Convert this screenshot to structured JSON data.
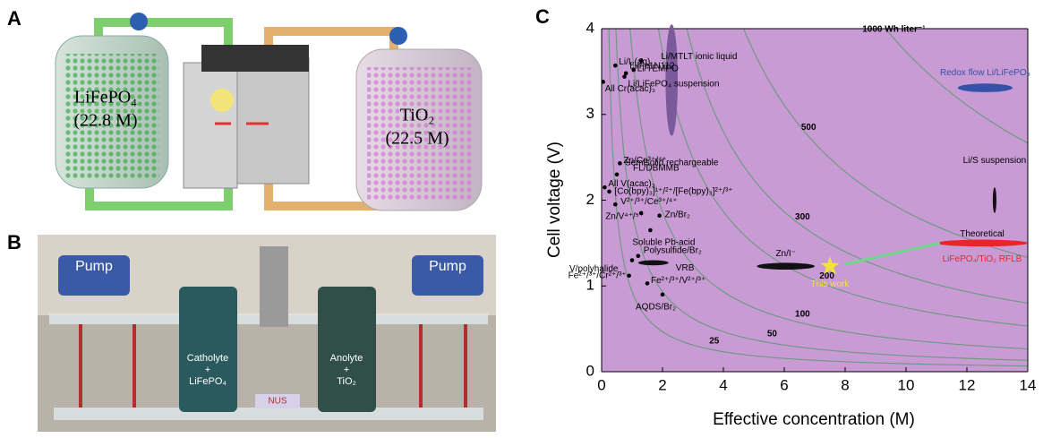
{
  "panels": {
    "a": {
      "label": "A",
      "left_tank": [
        "LiFePO₄",
        "(22.8 M)"
      ],
      "right_tank": [
        "TiO₂",
        "(22.5 M)"
      ]
    },
    "b": {
      "label": "B",
      "pumps": [
        "Pump",
        "Pump"
      ],
      "catholyte": [
        "Catholyte",
        "+",
        "LiFePO₄"
      ],
      "anolyte": [
        "Anolyte",
        "+",
        "TiO₂"
      ],
      "badge": "NUS"
    },
    "c": {
      "label": "C"
    }
  },
  "chart_data": {
    "type": "scatter",
    "xlabel": "Effective concentration (M)",
    "ylabel": "Cell voltage (V)",
    "xlim": [
      0,
      14
    ],
    "ylim": [
      0,
      4
    ],
    "xticks": [
      0,
      2,
      4,
      6,
      8,
      10,
      12,
      14
    ],
    "yticks": [
      0,
      1,
      2,
      3,
      4
    ],
    "background": "#c99bd4",
    "contour_color": "#6f9a82",
    "contours": [
      {
        "value": 25,
        "label": "25"
      },
      {
        "value": 50,
        "label": "50"
      },
      {
        "value": 100,
        "label": "100"
      },
      {
        "value": 200,
        "label": "200"
      },
      {
        "value": 300,
        "label": "300"
      },
      {
        "value": 500,
        "label": "500"
      },
      {
        "value": 1000,
        "label": "1000 Wh liter⁻¹"
      }
    ],
    "points": [
      {
        "label": "Li/I₂(aq)",
        "x": 0.45,
        "y": 3.57
      },
      {
        "label": "Li/Fc1N112",
        "x": 0.8,
        "y": 3.48
      },
      {
        "label": "Li/MTLT ionic liquid",
        "x": 1.3,
        "y": 3.63
      },
      {
        "label": "Li/TEMPO",
        "x": 1.05,
        "y": 3.52
      },
      {
        "label": "Li/LiFePO₄ suspension",
        "x": 0.75,
        "y": 3.44
      },
      {
        "label": "All Cr(acac)₃",
        "x": 0.05,
        "y": 3.38
      },
      {
        "label": "Zn/Ce³⁺/⁴⁺",
        "x": 0.6,
        "y": 2.43
      },
      {
        "label": "FL/DBMMB",
        "x": 0.5,
        "y": 2.3
      },
      {
        "label": "All V(acac)₃",
        "x": 0.1,
        "y": 2.15
      },
      {
        "label": "[Co(bpy)₃]¹⁺/²⁺/[Fe(bpy)₃]²⁺/³⁺",
        "x": 0.25,
        "y": 2.1
      },
      {
        "label": "V²⁺/³⁺/Ce³⁺/⁴⁺",
        "x": 0.45,
        "y": 1.95
      },
      {
        "label": "Zn/V⁴⁺/⁵⁺",
        "x": 1.3,
        "y": 1.85
      },
      {
        "label": "Zn/Br₂",
        "x": 1.9,
        "y": 1.82
      },
      {
        "label": "Soluble Pb-acid",
        "x": 1.6,
        "y": 1.65
      },
      {
        "label": "Polysulfide/Br₂",
        "x": 1.2,
        "y": 1.35
      },
      {
        "label": "V/polyhalide",
        "x": 1.0,
        "y": 1.3
      },
      {
        "label": "Fe²⁺/³⁺/Cr²⁺/³⁺",
        "x": 0.9,
        "y": 1.12
      },
      {
        "label": "Fe²⁺/³⁺/V²⁺/³⁺",
        "x": 1.5,
        "y": 1.03
      },
      {
        "label": "AQDS/Br₂",
        "x": 2.0,
        "y": 0.9
      }
    ],
    "regions": [
      {
        "label": "Semisolid rechargeable",
        "x_range": [
          2.1,
          2.5
        ],
        "y_range": [
          2.75,
          4.05
        ],
        "color": "#7a5a9a"
      },
      {
        "label": "Redox flow Li/LiFePO₄",
        "x_range": [
          11.7,
          13.5
        ],
        "y_range": [
          3.26,
          3.36
        ],
        "color": "#3552a8"
      },
      {
        "label": "Li/S suspension",
        "x_range": [
          12.85,
          12.97
        ],
        "y_range": [
          1.85,
          2.15
        ],
        "color": "#111111"
      },
      {
        "label": "Zn/I⁻",
        "x_range": [
          5.1,
          7.0
        ],
        "y_range": [
          1.19,
          1.27
        ],
        "color": "#111111"
      },
      {
        "label": "VRB",
        "x_range": [
          1.2,
          2.2
        ],
        "y_range": [
          1.24,
          1.3
        ],
        "color": "#111111"
      },
      {
        "label": "Theoretical",
        "sublabel": "LiFePO₄/TiO₂ RFLB",
        "x_range": [
          11.0,
          14.0
        ],
        "y_range": [
          1.46,
          1.54
        ],
        "color": "#e8262a"
      }
    ],
    "this_work": {
      "label": "This work",
      "x": 7.5,
      "y": 1.23,
      "color": "#f2e23a"
    }
  }
}
